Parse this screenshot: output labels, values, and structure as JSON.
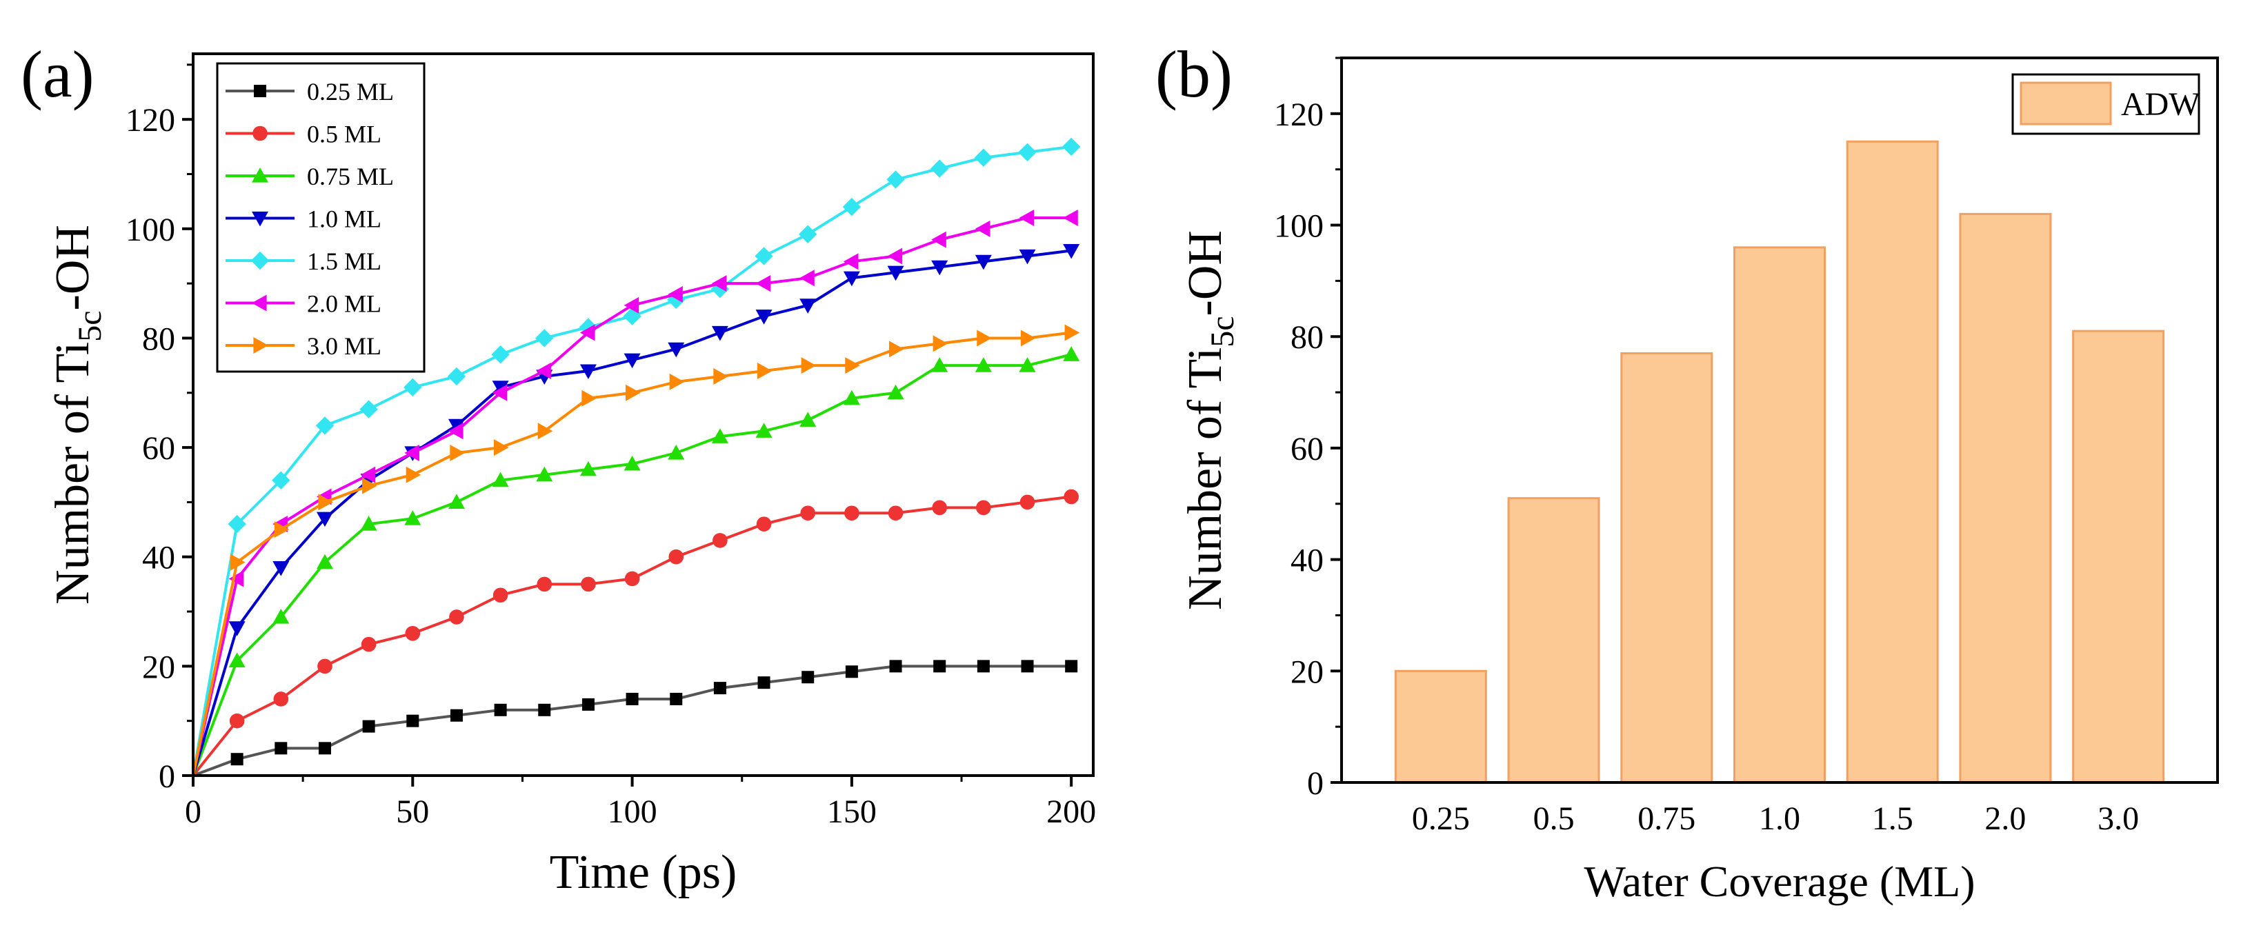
{
  "chart_data": [
    {
      "type": "line",
      "panel_label": "(a)",
      "xlabel": "Time (ps)",
      "ylabel": {
        "prefix": "Number of Ti",
        "subscript": "5c",
        "suffix": "-OH"
      },
      "xlim": [
        0,
        205
      ],
      "ylim": [
        0,
        132
      ],
      "xticks": [
        0,
        50,
        100,
        150,
        200
      ],
      "yticks": [
        0,
        20,
        40,
        60,
        80,
        100,
        120
      ],
      "legend_position": "top-left",
      "x": [
        0,
        10,
        20,
        30,
        40,
        50,
        60,
        70,
        80,
        90,
        100,
        110,
        120,
        130,
        140,
        150,
        160,
        170,
        180,
        190,
        200
      ],
      "series": [
        {
          "name": "0.25 ML",
          "color": "#000000",
          "line_color": "#555555",
          "marker": "square",
          "values": [
            0,
            3,
            5,
            5,
            9,
            10,
            11,
            12,
            12,
            13,
            14,
            14,
            16,
            17,
            18,
            19,
            20,
            20,
            20,
            20,
            20
          ]
        },
        {
          "name": "0.5 ML",
          "color": "#ee3333",
          "line_color": "#ee3333",
          "marker": "circle",
          "values": [
            0,
            10,
            14,
            20,
            24,
            26,
            29,
            33,
            35,
            35,
            36,
            40,
            43,
            46,
            48,
            48,
            48,
            49,
            49,
            50,
            51
          ]
        },
        {
          "name": "0.75 ML",
          "color": "#22dd00",
          "line_color": "#22dd00",
          "marker": "triangle-up",
          "values": [
            0,
            21,
            29,
            39,
            46,
            47,
            50,
            54,
            55,
            56,
            57,
            59,
            62,
            63,
            65,
            69,
            70,
            75,
            75,
            75,
            77
          ]
        },
        {
          "name": "1.0 ML",
          "color": "#0000cc",
          "line_color": "#0000cc",
          "marker": "triangle-down",
          "values": [
            0,
            27,
            38,
            47,
            54,
            59,
            64,
            71,
            73,
            74,
            76,
            78,
            81,
            84,
            86,
            91,
            92,
            93,
            94,
            95,
            96
          ]
        },
        {
          "name": "1.5 ML",
          "color": "#33e5f0",
          "line_color": "#33e5f0",
          "marker": "diamond",
          "values": [
            0,
            46,
            54,
            64,
            67,
            71,
            73,
            77,
            80,
            82,
            84,
            87,
            89,
            95,
            99,
            104,
            109,
            111,
            113,
            114,
            115
          ]
        },
        {
          "name": "2.0 ML",
          "color": "#ee00ee",
          "line_color": "#ee00ee",
          "marker": "triangle-left",
          "values": [
            0,
            36,
            46,
            51,
            55,
            59,
            63,
            70,
            74,
            81,
            86,
            88,
            90,
            90,
            91,
            94,
            95,
            98,
            100,
            102,
            102
          ]
        },
        {
          "name": "3.0 ML",
          "color": "#ff8800",
          "line_color": "#ff8800",
          "marker": "triangle-right",
          "values": [
            0,
            39,
            45,
            50,
            53,
            55,
            59,
            60,
            63,
            69,
            70,
            72,
            73,
            74,
            75,
            75,
            78,
            79,
            80,
            80,
            81
          ]
        }
      ]
    },
    {
      "type": "bar",
      "panel_label": "(b)",
      "xlabel": "Water Coverage (ML)",
      "ylabel": {
        "prefix": "Number of Ti",
        "subscript": "5c",
        "suffix": "-OH"
      },
      "ylim": [
        0,
        130
      ],
      "yticks": [
        0,
        20,
        40,
        60,
        80,
        100,
        120
      ],
      "categories": [
        "0.25",
        "0.5",
        "0.75",
        "1.0",
        "1.5",
        "2.0",
        "3.0"
      ],
      "values": [
        20,
        51,
        77,
        96,
        115,
        102,
        81
      ],
      "legend_position": "top-right",
      "series_name": "ADW",
      "bar_fill": "#fcc995",
      "bar_edge": "#f0a060"
    }
  ]
}
